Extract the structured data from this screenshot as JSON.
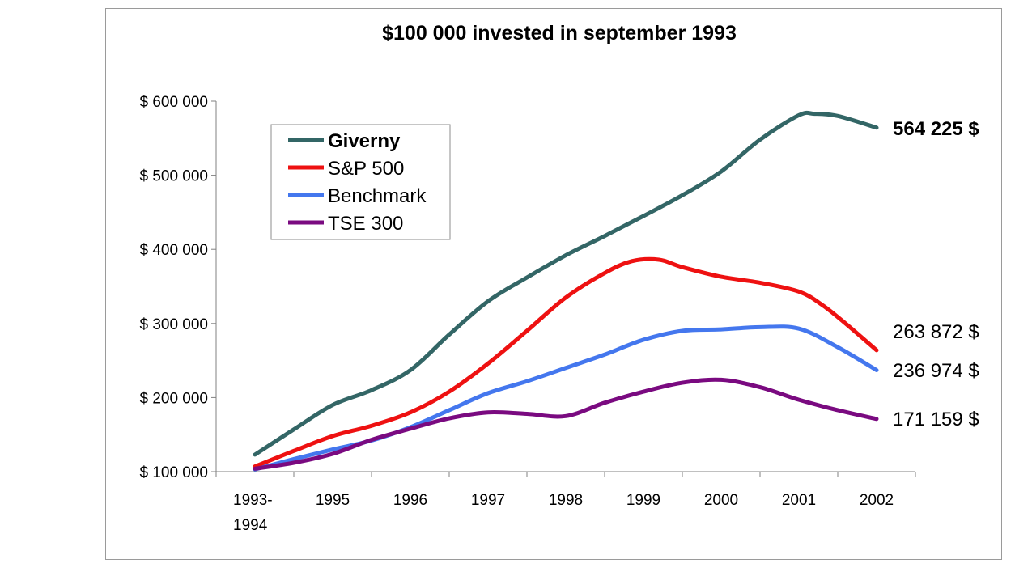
{
  "chart_data": {
    "type": "line",
    "title": "$100 000 invested in september 1993",
    "xlabel": "",
    "ylabel": "",
    "categories": [
      "1993-1994",
      "1995",
      "1996",
      "1997",
      "1998",
      "1999",
      "2000",
      "2001",
      "2002"
    ],
    "x_tick_lines": [
      [
        "1993-",
        "1994"
      ],
      [
        "1995"
      ],
      [
        "1996"
      ],
      [
        "1997"
      ],
      [
        "1998"
      ],
      [
        "1999"
      ],
      [
        "2000"
      ],
      [
        "2001"
      ],
      [
        "2002"
      ]
    ],
    "x_positions": [
      0,
      1,
      2,
      3,
      4,
      5,
      6,
      7,
      8
    ],
    "ylim": [
      100000,
      600000
    ],
    "yticks": [
      100000,
      200000,
      300000,
      400000,
      500000,
      600000
    ],
    "ytick_labels": [
      "$ 100 000",
      "$ 200 000",
      "$ 300 000",
      "$ 400 000",
      "$ 500 000",
      "$ 600 000"
    ],
    "grid": false,
    "legend_position": "top-left",
    "series": [
      {
        "name": "Giverny",
        "color": "#336666",
        "bold": true,
        "end_label": "564 225 $",
        "x": [
          0,
          0.5,
          1,
          1.5,
          2,
          2.5,
          3,
          3.5,
          4,
          4.5,
          5,
          5.5,
          6,
          6.5,
          7,
          7.2,
          7.5,
          8
        ],
        "y": [
          123000,
          157000,
          190000,
          210000,
          237000,
          285000,
          330000,
          362000,
          392000,
          418000,
          445000,
          473000,
          505000,
          548000,
          581000,
          583000,
          580000,
          564225
        ]
      },
      {
        "name": "S&P 500",
        "color": "#ee1111",
        "bold": false,
        "end_label": "263 872 $",
        "x": [
          0,
          0.5,
          1,
          1.5,
          2,
          2.5,
          3,
          3.5,
          4,
          4.5,
          4.85,
          5.2,
          5.5,
          6,
          6.5,
          7,
          7.3,
          7.6,
          8
        ],
        "y": [
          107000,
          128000,
          148000,
          162000,
          180000,
          208000,
          246000,
          290000,
          335000,
          368000,
          384000,
          386000,
          376000,
          363000,
          355000,
          343000,
          325000,
          300000,
          263872
        ]
      },
      {
        "name": "Benchmark",
        "color": "#4477ee",
        "bold": false,
        "end_label": "236 974 $",
        "x": [
          0,
          0.5,
          1,
          1.5,
          2,
          2.5,
          3,
          3.5,
          4,
          4.5,
          5,
          5.5,
          6,
          6.5,
          7,
          7.5,
          8
        ],
        "y": [
          103000,
          117000,
          130000,
          142000,
          160000,
          183000,
          206000,
          222000,
          240000,
          258000,
          278000,
          290000,
          292000,
          295000,
          293000,
          268000,
          236974
        ]
      },
      {
        "name": "TSE 300",
        "color": "#7a0a80",
        "bold": false,
        "end_label": "171 159 $",
        "x": [
          0,
          0.5,
          1,
          1.5,
          2,
          2.5,
          3,
          3.5,
          4,
          4.5,
          5,
          5.5,
          6,
          6.5,
          7,
          7.5,
          8
        ],
        "y": [
          104000,
          112000,
          124000,
          143000,
          158000,
          172000,
          180000,
          178000,
          175000,
          193000,
          208000,
          220000,
          224000,
          214000,
          197000,
          183000,
          171159
        ]
      }
    ]
  }
}
